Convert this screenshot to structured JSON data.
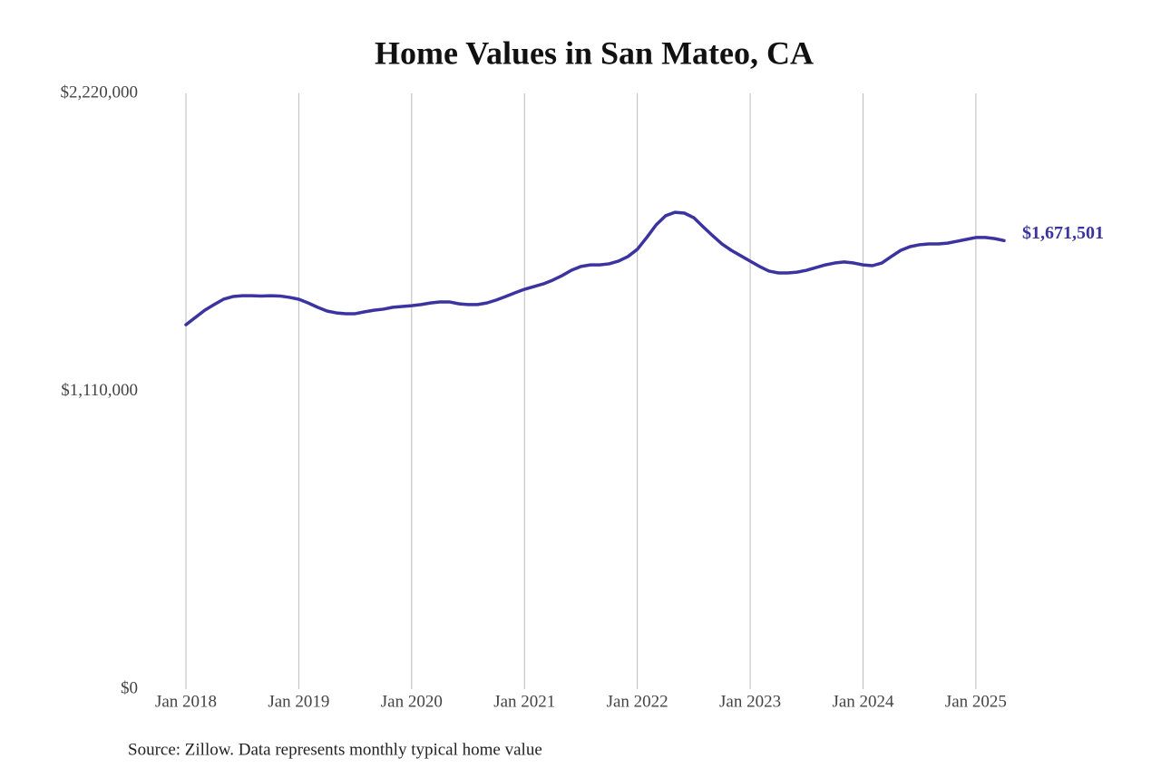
{
  "chart_data": {
    "type": "line",
    "title": "Home Values in San Mateo, CA",
    "source": "Source: Zillow. Data represents monthly typical home value",
    "x": [
      "2018-01",
      "2018-02",
      "2018-03",
      "2018-04",
      "2018-05",
      "2018-06",
      "2018-07",
      "2018-08",
      "2018-09",
      "2018-10",
      "2018-11",
      "2018-12",
      "2019-01",
      "2019-02",
      "2019-03",
      "2019-04",
      "2019-05",
      "2019-06",
      "2019-07",
      "2019-08",
      "2019-09",
      "2019-10",
      "2019-11",
      "2019-12",
      "2020-01",
      "2020-02",
      "2020-03",
      "2020-04",
      "2020-05",
      "2020-06",
      "2020-07",
      "2020-08",
      "2020-09",
      "2020-10",
      "2020-11",
      "2020-12",
      "2021-01",
      "2021-02",
      "2021-03",
      "2021-04",
      "2021-05",
      "2021-06",
      "2021-07",
      "2021-08",
      "2021-09",
      "2021-10",
      "2021-11",
      "2021-12",
      "2022-01",
      "2022-02",
      "2022-03",
      "2022-04",
      "2022-05",
      "2022-06",
      "2022-07",
      "2022-08",
      "2022-09",
      "2022-10",
      "2022-11",
      "2022-12",
      "2023-01",
      "2023-02",
      "2023-03",
      "2023-04",
      "2023-05",
      "2023-06",
      "2023-07",
      "2023-08",
      "2023-09",
      "2023-10",
      "2023-11",
      "2023-12",
      "2024-01",
      "2024-02",
      "2024-03",
      "2024-04",
      "2024-05",
      "2024-06",
      "2024-07",
      "2024-08",
      "2024-09",
      "2024-10",
      "2024-11",
      "2024-12",
      "2025-01",
      "2025-02",
      "2025-03",
      "2025-04"
    ],
    "series": [
      {
        "color": "#3b33a0",
        "values": [
          1358000,
          1385000,
          1412000,
          1433000,
          1453000,
          1463000,
          1466000,
          1466000,
          1465000,
          1466000,
          1465000,
          1460000,
          1453000,
          1439000,
          1423000,
          1409000,
          1402000,
          1399000,
          1399000,
          1406000,
          1412000,
          1416000,
          1423000,
          1426000,
          1429000,
          1433000,
          1439000,
          1443000,
          1443000,
          1436000,
          1433000,
          1433000,
          1439000,
          1450000,
          1463000,
          1477000,
          1490000,
          1500000,
          1510000,
          1524000,
          1541000,
          1561000,
          1575000,
          1581000,
          1581000,
          1585000,
          1595000,
          1612000,
          1639000,
          1683000,
          1730000,
          1764000,
          1777000,
          1774000,
          1757000,
          1723000,
          1690000,
          1659000,
          1635000,
          1615000,
          1595000,
          1575000,
          1558000,
          1551000,
          1551000,
          1554000,
          1561000,
          1571000,
          1581000,
          1588000,
          1592000,
          1588000,
          1581000,
          1578000,
          1588000,
          1612000,
          1635000,
          1649000,
          1656000,
          1659000,
          1659000,
          1662000,
          1669000,
          1676000,
          1683000,
          1683000,
          1679000,
          1671501
        ],
        "value_labels": [
          null,
          null,
          null,
          null,
          null,
          null,
          null,
          null,
          null,
          null,
          null,
          null,
          null,
          null,
          null,
          null,
          null,
          null,
          null,
          null,
          null,
          null,
          null,
          null,
          null,
          null,
          null,
          null,
          null,
          null,
          null,
          null,
          null,
          null,
          null,
          null,
          null,
          null,
          null,
          null,
          null,
          null,
          null,
          null,
          null,
          null,
          null,
          null,
          null,
          null,
          null,
          null,
          null,
          null,
          null,
          null,
          null,
          null,
          null,
          null,
          null,
          null,
          null,
          null,
          null,
          null,
          null,
          null,
          null,
          null,
          null,
          null,
          null,
          null,
          null,
          null,
          null,
          null,
          null,
          null,
          null,
          null,
          null,
          null,
          null,
          null,
          null,
          "$1,671,501"
        ]
      }
    ],
    "xlim": [
      "2018-01",
      "2025-04"
    ],
    "xticks": [
      {
        "value": "2018-01",
        "label": "Jan 2018"
      },
      {
        "value": "2019-01",
        "label": "Jan 2019"
      },
      {
        "value": "2020-01",
        "label": "Jan 2020"
      },
      {
        "value": "2021-01",
        "label": "Jan 2021"
      },
      {
        "value": "2022-01",
        "label": "Jan 2022"
      },
      {
        "value": "2023-01",
        "label": "Jan 2023"
      },
      {
        "value": "2024-01",
        "label": "Jan 2024"
      },
      {
        "value": "2025-01",
        "label": "Jan 2025"
      }
    ],
    "ylim": [
      0,
      2220000
    ],
    "yticks": [
      {
        "value": 0,
        "label": "$0"
      },
      {
        "value": 1110000,
        "label": "$1,110,000"
      },
      {
        "value": 2220000,
        "label": "$2,220,000"
      }
    ],
    "grid": "x"
  }
}
